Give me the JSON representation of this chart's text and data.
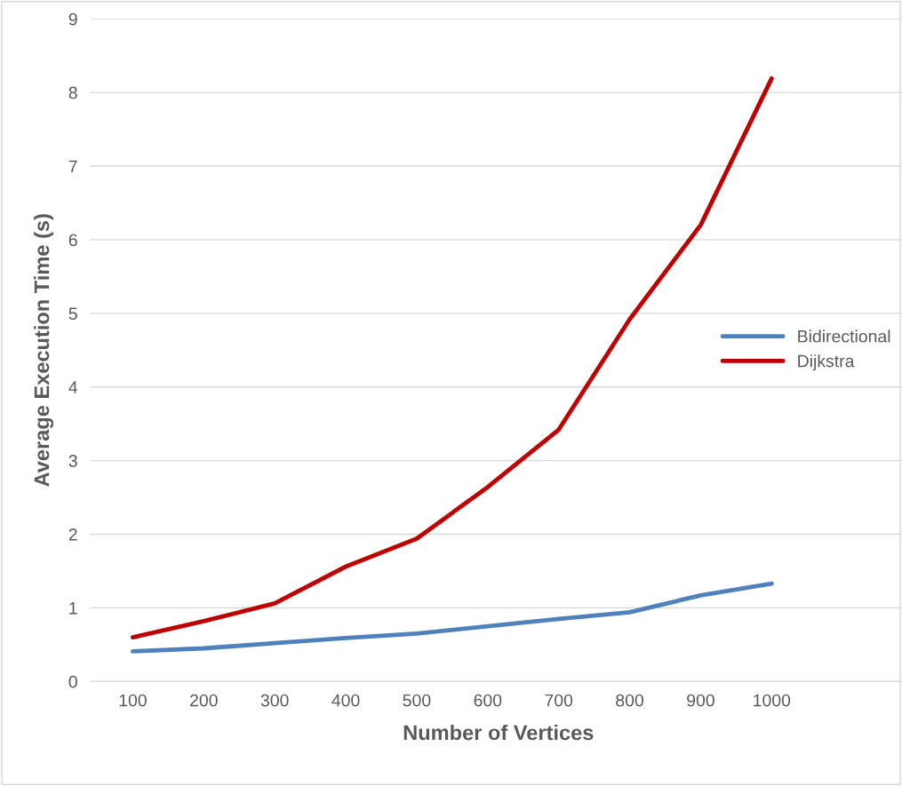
{
  "chart_data": {
    "type": "line",
    "xlabel": "Number of Vertices",
    "ylabel": "Average Execution Time (s)",
    "categories": [
      "100",
      "200",
      "300",
      "400",
      "500",
      "600",
      "700",
      "800",
      "900",
      "1000"
    ],
    "series": [
      {
        "name": "Bidirectional",
        "color": "#4f81bd",
        "values": [
          0.41,
          0.45,
          0.52,
          0.59,
          0.65,
          0.75,
          0.85,
          0.94,
          1.17,
          1.33
        ]
      },
      {
        "name": "Dijkstra",
        "color": "#c00000",
        "values": [
          0.6,
          0.82,
          1.06,
          1.56,
          1.94,
          2.64,
          3.42,
          4.92,
          6.2,
          8.19
        ]
      }
    ],
    "ylim": [
      0,
      9
    ],
    "yticks": [
      0,
      1,
      2,
      3,
      4,
      5,
      6,
      7,
      8,
      9
    ],
    "grid": "y",
    "legend": "right",
    "marker": "none",
    "line_style": "solid"
  }
}
